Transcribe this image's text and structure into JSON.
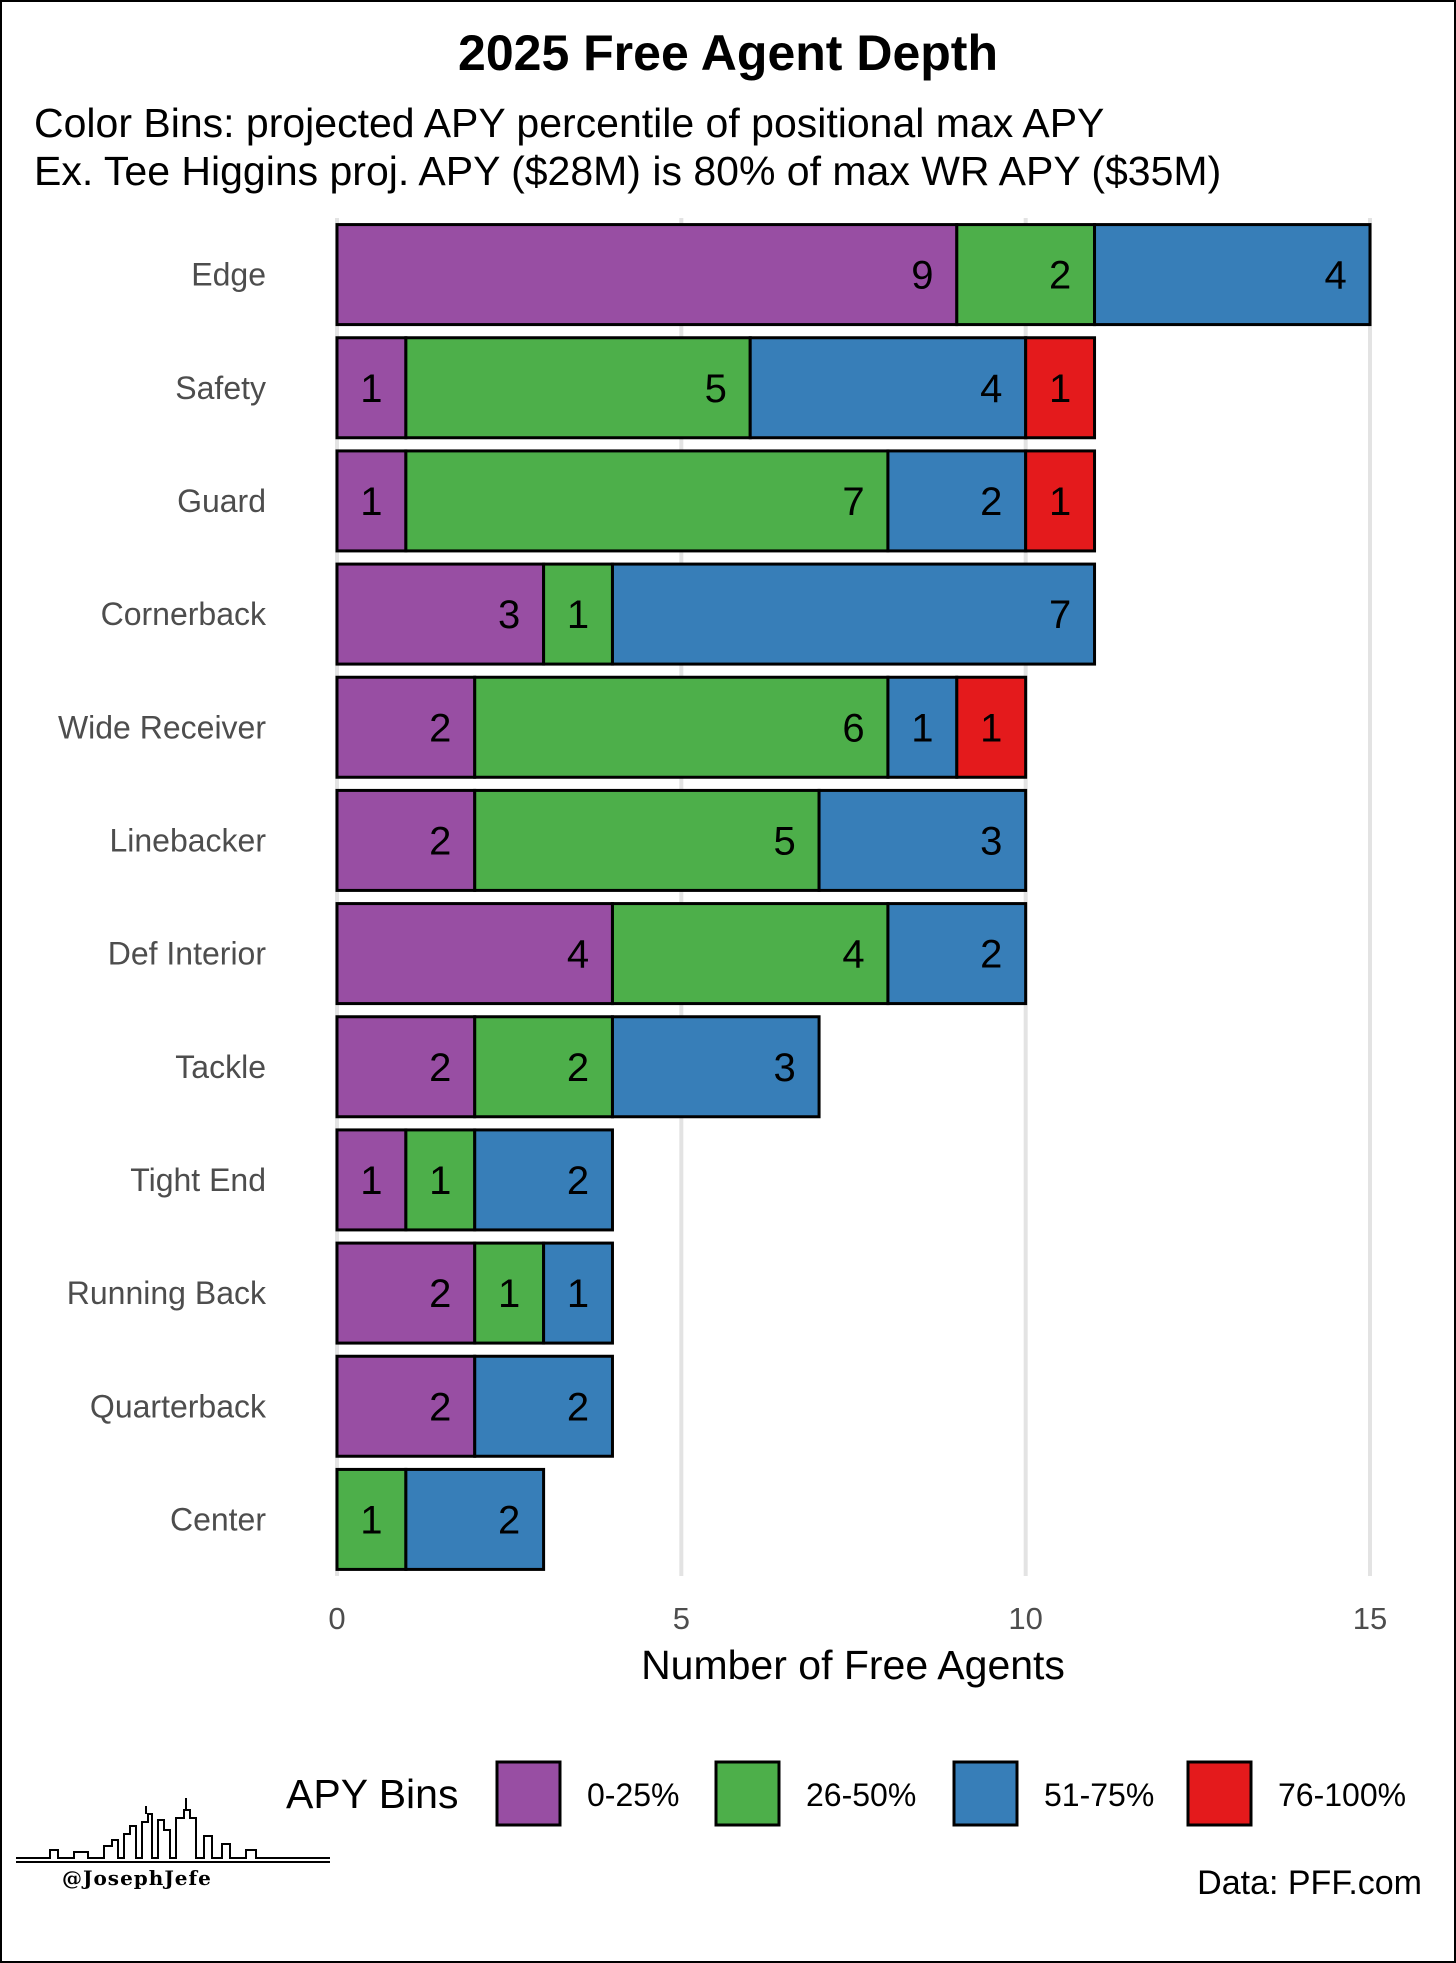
{
  "chart_data": {
    "type": "bar",
    "orientation": "horizontal",
    "stacked": true,
    "title": "2025 Free Agent Depth",
    "subtitle": [
      "Color Bins: projected APY percentile of positional max APY",
      "Ex. Tee Higgins proj. APY ($28M) is 80% of max WR APY ($35M)"
    ],
    "xlabel": "Number of Free Agents",
    "ylabel": "",
    "xlim": [
      0,
      15
    ],
    "xticks": [
      0,
      5,
      10,
      15
    ],
    "xtick_labels": [
      "0",
      "5",
      "10",
      "15"
    ],
    "grid": true,
    "legend_title": "APY Bins",
    "legend_position": "bottom",
    "categories": [
      "Edge",
      "Safety",
      "Guard",
      "Cornerback",
      "Wide Receiver",
      "Linebacker",
      "Def Interior",
      "Tackle",
      "Tight End",
      "Running Back",
      "Quarterback",
      "Center"
    ],
    "series": [
      {
        "name": "0-25%",
        "color": "#984ea3",
        "values": [
          9,
          1,
          1,
          3,
          2,
          2,
          4,
          2,
          1,
          2,
          2,
          0
        ]
      },
      {
        "name": "26-50%",
        "color": "#4daf4a",
        "values": [
          2,
          5,
          7,
          1,
          6,
          5,
          4,
          2,
          1,
          1,
          0,
          1
        ]
      },
      {
        "name": "51-75%",
        "color": "#377eb8",
        "values": [
          4,
          4,
          2,
          7,
          1,
          3,
          2,
          3,
          2,
          1,
          2,
          2
        ]
      },
      {
        "name": "76-100%",
        "color": "#e41a1c",
        "values": [
          0,
          1,
          1,
          0,
          1,
          0,
          0,
          0,
          0,
          0,
          0,
          0
        ]
      }
    ]
  },
  "credits": {
    "handle": "@JosephJefe",
    "source": "Data: PFF.com"
  }
}
